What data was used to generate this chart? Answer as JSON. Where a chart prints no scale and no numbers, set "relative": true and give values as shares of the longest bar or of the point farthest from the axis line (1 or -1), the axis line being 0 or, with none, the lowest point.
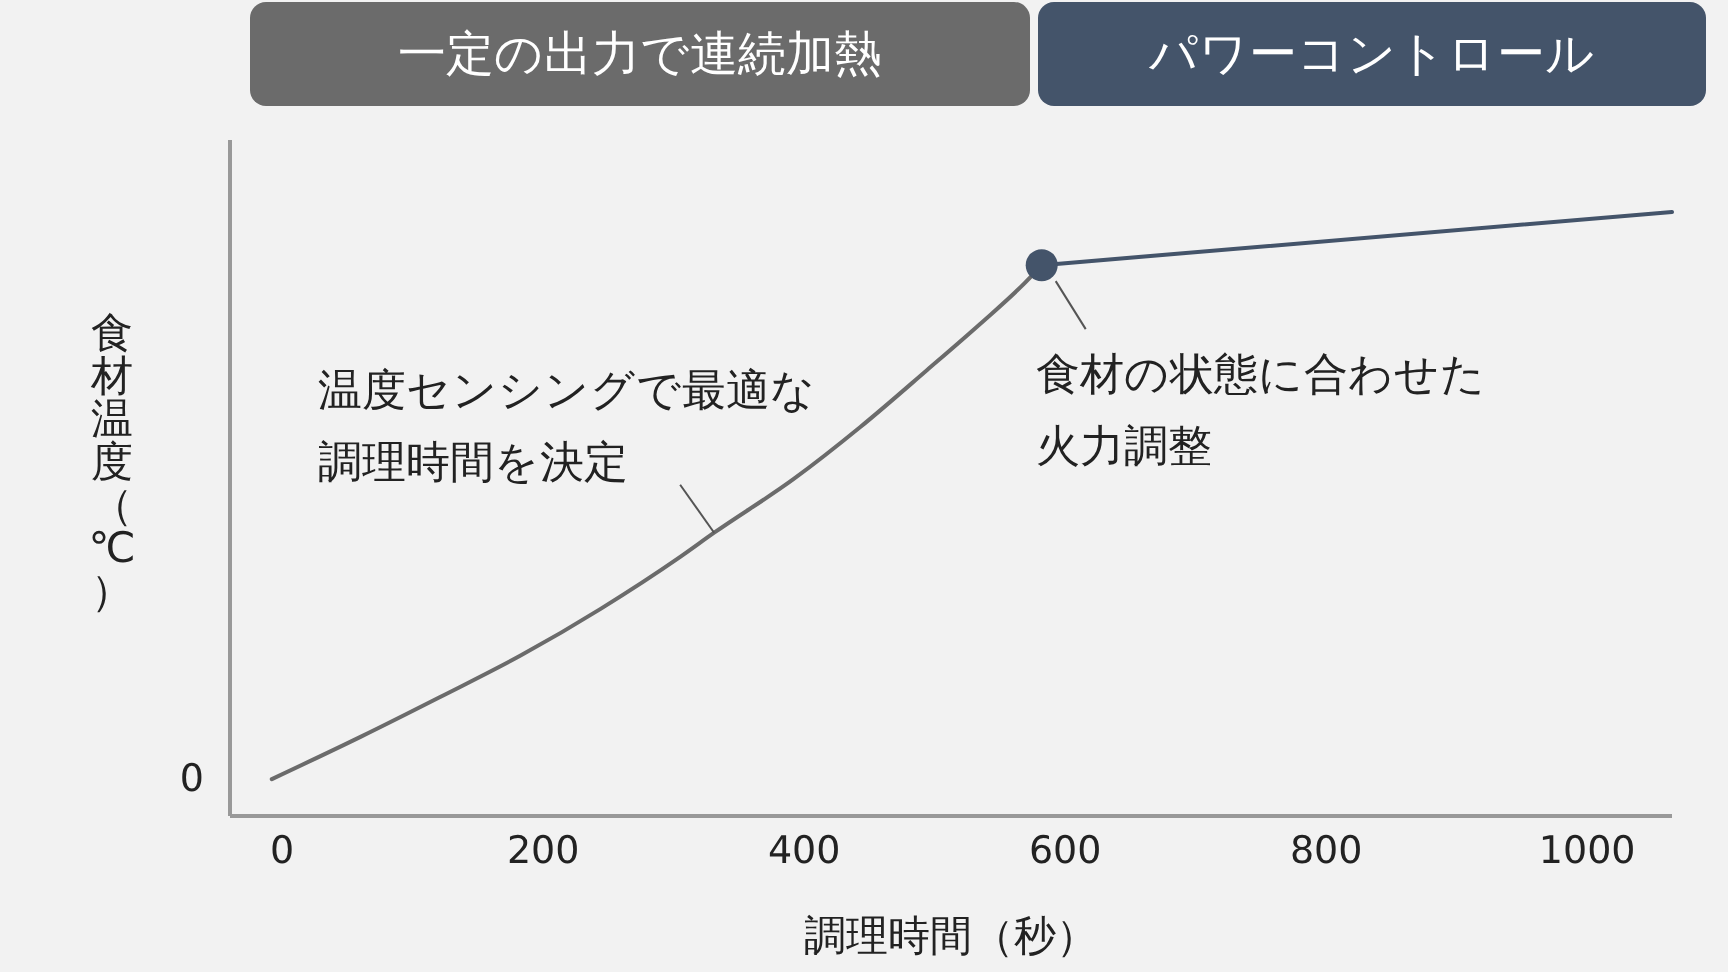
{
  "chart_data": {
    "type": "line",
    "relative": true,
    "xlabel": "調理時間（秒）",
    "ylabel": "食材温度（℃）",
    "xlim": [
      -40,
      1065
    ],
    "xticks": [
      0,
      200,
      400,
      600,
      800,
      1000
    ],
    "series": [
      {
        "color": "#6b6b6b",
        "x": [
          -8,
          60,
          121,
          183,
          244,
          305,
          331,
          392,
          443,
          494,
          535,
          566,
          582
        ],
        "values": [
          0.061,
          0.131,
          0.197,
          0.266,
          0.343,
          0.429,
          0.469,
          0.558,
          0.644,
          0.738,
          0.815,
          0.876,
          0.912
        ]
      },
      {
        "color": "#44546a",
        "x": [
          582,
          1065
        ],
        "values": [
          0.912,
          1
        ]
      },
      {
        "type": "scatter",
        "color": "#44546a",
        "x": [
          582
        ],
        "values": [
          0.912
        ]
      }
    ],
    "annotations": [
      "一定の出力で連続加熱",
      "パワーコントロール",
      {
        "text": "温度センシングで最適な調理時間を決定",
        "x": 331,
        "y": 0.469
      },
      {
        "text": "食材の状態に合わせた火力調整",
        "x": 582,
        "y": 0.912
      },
      "0"
    ]
  }
}
